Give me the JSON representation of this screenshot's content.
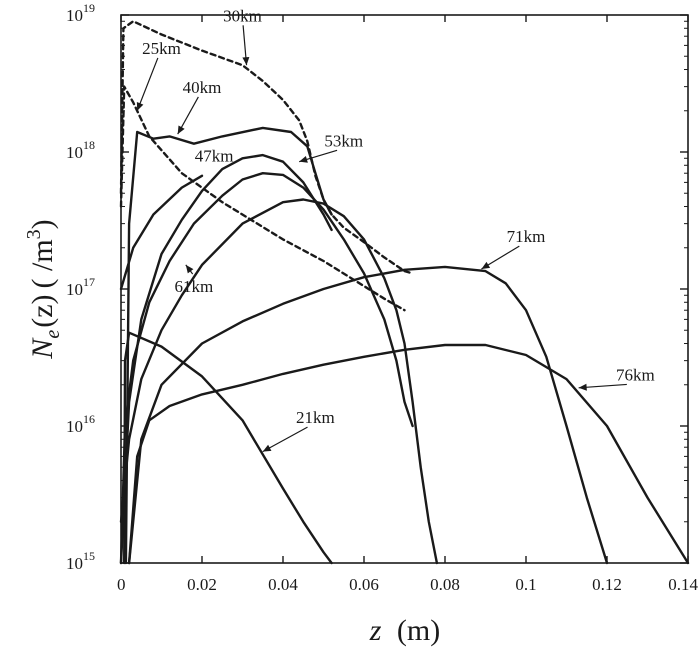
{
  "chart_data": {
    "type": "line",
    "xlabel": {
      "var": "z",
      "unit": "(m)"
    },
    "ylabel": {
      "N": "N",
      "sub": "e",
      "arg": "(z)",
      "unit": "( /m",
      "unit_exp": "3",
      "unit_close": ")"
    },
    "x_scale": "linear",
    "y_scale": "log",
    "xlim": [
      0,
      0.14
    ],
    "ylim": [
      1000000000000000.0,
      1e+19
    ],
    "x_ticks": [
      {
        "value": 0,
        "label": "0"
      },
      {
        "value": 0.02,
        "label": "0.02"
      },
      {
        "value": 0.04,
        "label": "0.04"
      },
      {
        "value": 0.06,
        "label": "0.06"
      },
      {
        "value": 0.08,
        "label": "0.08"
      },
      {
        "value": 0.1,
        "label": "0.1"
      },
      {
        "value": 0.12,
        "label": "0.12"
      },
      {
        "value": 0.14,
        "label": "0.14"
      }
    ],
    "y_ticks": [
      {
        "value": 1000000000000000.0,
        "base": "10",
        "exp": "15"
      },
      {
        "value": 1e+16,
        "base": "10",
        "exp": "16"
      },
      {
        "value": 1e+17,
        "base": "10",
        "exp": "17"
      },
      {
        "value": 1e+18,
        "base": "10",
        "exp": "18"
      },
      {
        "value": 1e+19,
        "base": "10",
        "exp": "19"
      }
    ],
    "grid": false,
    "legend": "none",
    "series": [
      {
        "name": "21km",
        "dashed": false,
        "x": [
          0.0008,
          0.001,
          0.002,
          0.01,
          0.02,
          0.03,
          0.04,
          0.045,
          0.05,
          0.052
        ],
        "y": [
          1000000000000000.0,
          3e+16,
          4.8e+16,
          3.8e+16,
          2.3e+16,
          1.1e+16,
          3500000000000000.0,
          2000000000000000.0,
          1200000000000000.0,
          1000000000000000.0
        ]
      },
      {
        "name": "25km",
        "dashed": true,
        "x": [
          0,
          0.0008,
          0.003,
          0.007,
          0.015,
          0.025,
          0.04,
          0.05,
          0.06,
          0.065,
          0.07
        ],
        "y": [
          4e+17,
          3e+18,
          2.3e+18,
          1.3e+18,
          7e+17,
          4.3e+17,
          2.3e+17,
          1.6e+17,
          1.05e+17,
          8.5e+16,
          7e+16
        ]
      },
      {
        "name": "30km",
        "dashed": true,
        "x": [
          0,
          0.0006,
          0.003,
          0.01,
          0.02,
          0.03,
          0.035,
          0.04,
          0.044,
          0.046,
          0.048,
          0.05,
          0.052,
          0.055,
          0.06,
          0.065,
          0.07,
          0.072
        ],
        "y": [
          5e+17,
          8e+18,
          9e+18,
          7.2e+18,
          5.5e+18,
          4.3e+18,
          3.3e+18,
          2.4e+18,
          1.7e+18,
          1.2e+18,
          6.7e+17,
          4.5e+17,
          3.5e+17,
          2.8e+17,
          2.2e+17,
          1.7e+17,
          1.35e+17,
          1.3e+17
        ]
      },
      {
        "name": "40km",
        "dashed": false,
        "x": [
          0.0012,
          0.002,
          0.004,
          0.008,
          0.012,
          0.018,
          0.025,
          0.035,
          0.042,
          0.046,
          0.048,
          0.05,
          0.052
        ],
        "y": [
          1000000000000000.0,
          3e+17,
          1.4e+18,
          1.25e+18,
          1.3e+18,
          1.15e+18,
          1.3e+18,
          1.5e+18,
          1.4e+18,
          1.1e+18,
          7e+17,
          4.5e+17,
          3.5e+17
        ]
      },
      {
        "name": "47km",
        "dashed": false,
        "x": [
          0,
          0.003,
          0.008,
          0.015,
          0.02
        ],
        "y": [
          1e+17,
          2e+17,
          3.5e+17,
          5.5e+17,
          6.7e+17
        ]
      },
      {
        "name": "53km",
        "dashed": false,
        "x": [
          0,
          0.002,
          0.005,
          0.01,
          0.015,
          0.02,
          0.025,
          0.03,
          0.035,
          0.04,
          0.045,
          0.05,
          0.052
        ],
        "y": [
          1000000000000000.0,
          1.5e+16,
          6e+16,
          1.8e+17,
          3.2e+17,
          5.2e+17,
          7.5e+17,
          9e+17,
          9.5e+17,
          8.5e+17,
          6e+17,
          3.5e+17,
          2.7e+17
        ]
      },
      {
        "name": "61km",
        "dashed": false,
        "x": [
          0,
          0.001,
          0.003,
          0.007,
          0.012,
          0.018,
          0.025,
          0.03,
          0.035,
          0.04,
          0.045,
          0.05,
          0.055,
          0.06,
          0.065,
          0.068,
          0.07,
          0.072
        ],
        "y": [
          1000000000000000.0,
          1e+16,
          3e+16,
          8e+16,
          1.6e+17,
          3e+17,
          4.8e+17,
          6.3e+17,
          7e+17,
          6.8e+17,
          5.5e+17,
          3.8e+17,
          2.3e+17,
          1.3e+17,
          6e+16,
          3e+16,
          1.5e+16,
          1e+16
        ]
      },
      {
        "name": "unlabeled",
        "dashed": false,
        "x": [
          0,
          0.002,
          0.005,
          0.01,
          0.015,
          0.02,
          0.03,
          0.04,
          0.045,
          0.05,
          0.055,
          0.06,
          0.065,
          0.068,
          0.07,
          0.072,
          0.074,
          0.076,
          0.078
        ],
        "y": [
          2000000000000000.0,
          8000000000000000.0,
          2.2e+16,
          5e+16,
          9e+16,
          1.5e+17,
          3e+17,
          4.3e+17,
          4.5e+17,
          4.2e+17,
          3.4e+17,
          2.3e+17,
          1.2e+17,
          7e+16,
          4e+16,
          1.5e+16,
          5000000000000000.0,
          2000000000000000.0,
          1000000000000000.0
        ]
      },
      {
        "name": "71km",
        "dashed": false,
        "x": [
          0.002,
          0.005,
          0.01,
          0.02,
          0.03,
          0.04,
          0.05,
          0.06,
          0.07,
          0.08,
          0.09,
          0.095,
          0.1,
          0.105,
          0.11,
          0.115,
          0.12
        ],
        "y": [
          1000000000000000.0,
          8000000000000000.0,
          2e+16,
          4e+16,
          5.8e+16,
          7.8e+16,
          1e+17,
          1.22e+17,
          1.38e+17,
          1.45e+17,
          1.35e+17,
          1.1e+17,
          7e+16,
          3.2e+16,
          1e+16,
          3000000000000000.0,
          1000000000000000.0
        ]
      },
      {
        "name": "76km",
        "dashed": false,
        "x": [
          0.002,
          0.004,
          0.007,
          0.012,
          0.02,
          0.03,
          0.04,
          0.05,
          0.06,
          0.07,
          0.08,
          0.09,
          0.1,
          0.11,
          0.12,
          0.13,
          0.14
        ],
        "y": [
          1000000000000000.0,
          6000000000000000.0,
          1.1e+16,
          1.4e+16,
          1.7e+16,
          2e+16,
          2.4e+16,
          2.8e+16,
          3.2e+16,
          3.6e+16,
          3.9e+16,
          3.9e+16,
          3.3e+16,
          2.2e+16,
          1e+16,
          3000000000000000.0,
          1000000000000000.0
        ]
      }
    ],
    "annotations": [
      {
        "text": "30km",
        "series": "30km",
        "tx": 0.03,
        "ty": 9e+18,
        "ax": 0.031,
        "ay": 4.3e+18
      },
      {
        "text": "25km",
        "series": "25km",
        "tx": 0.01,
        "ty": 5.2e+18,
        "ax": 0.004,
        "ay": 2e+18
      },
      {
        "text": "40km",
        "series": "40km",
        "tx": 0.02,
        "ty": 2.7e+18,
        "ax": 0.014,
        "ay": 1.35e+18
      },
      {
        "text": "53km",
        "series": "53km",
        "tx": 0.055,
        "ty": 1.1e+18,
        "ax": 0.044,
        "ay": 8.5e+17
      },
      {
        "text": "47km",
        "series": "47km",
        "tx": 0.023,
        "ty": 8.5e+17,
        "ax": null,
        "ay": null
      },
      {
        "text": "61km",
        "series": "61km",
        "tx": 0.018,
        "ty": 9.5e+16,
        "ax": 0.016,
        "ay": 1.5e+17
      },
      {
        "text": "71km",
        "series": "71km",
        "tx": 0.1,
        "ty": 2.2e+17,
        "ax": 0.089,
        "ay": 1.4e+17
      },
      {
        "text": "76km",
        "series": "76km",
        "tx": 0.127,
        "ty": 2.15e+16,
        "ax": 0.113,
        "ay": 1.9e+16
      },
      {
        "text": "21km",
        "series": "21km",
        "tx": 0.048,
        "ty": 1.05e+16,
        "ax": 0.035,
        "ay": 6500000000000000.0
      }
    ]
  }
}
